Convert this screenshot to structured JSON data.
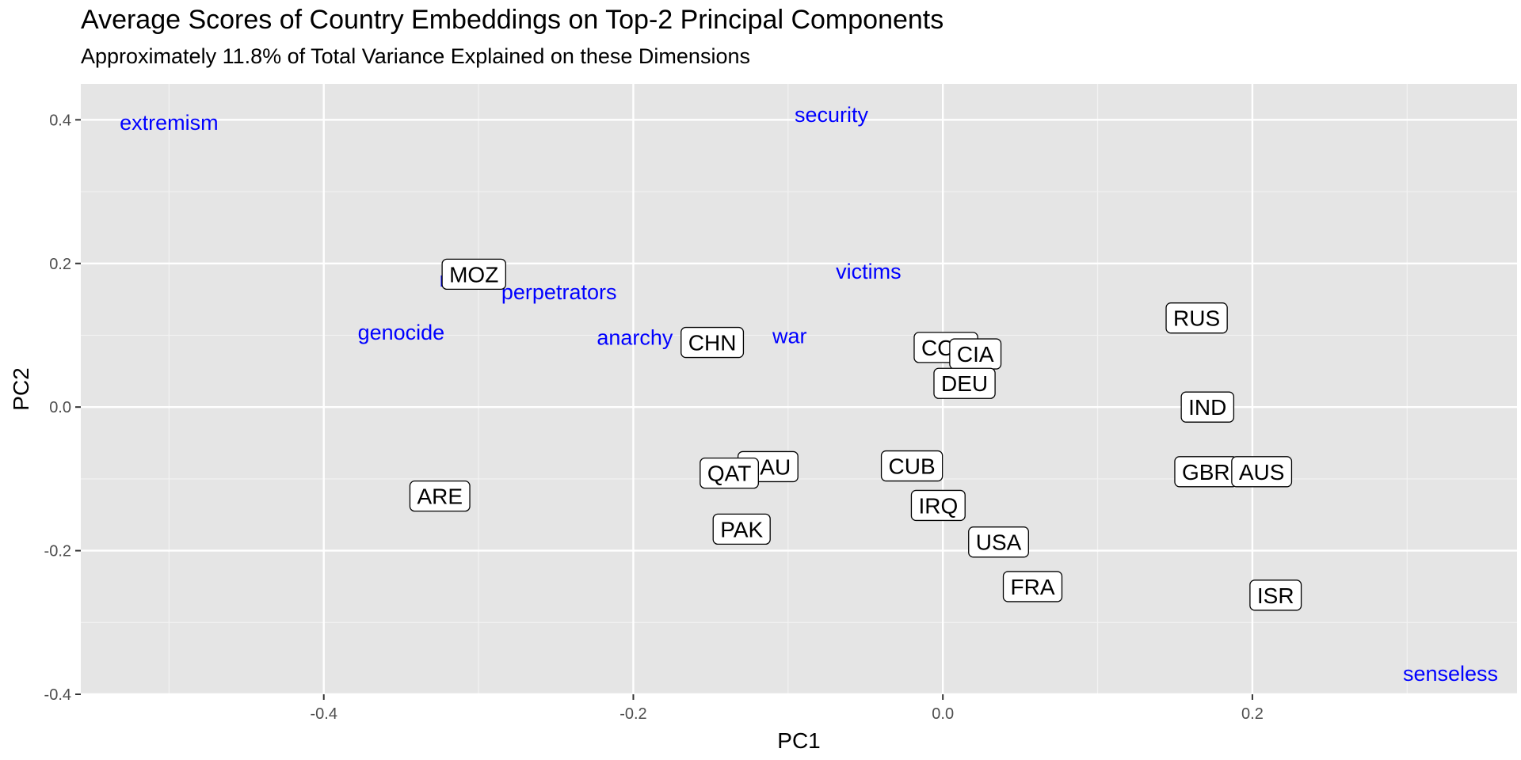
{
  "chart_data": {
    "type": "scatter",
    "title": "Average Scores of Country Embeddings on Top-2 Principal Components",
    "subtitle": "Approximately 11.8% of Total Variance Explained on these Dimensions",
    "xlabel": "PC1",
    "ylabel": "PC2",
    "xlim": [
      -0.557,
      0.371
    ],
    "ylim": [
      -0.4,
      0.45
    ],
    "x_ticks": [
      -0.4,
      -0.2,
      0.0,
      0.2
    ],
    "x_tick_labels": [
      "-0.4",
      "-0.2",
      "0.0",
      "0.2"
    ],
    "y_ticks": [
      -0.4,
      -0.2,
      0.0,
      0.2,
      0.4
    ],
    "y_tick_labels": [
      "-0.4",
      "-0.2",
      "0.0",
      "0.2",
      "0.4"
    ],
    "grid": true,
    "legend": "none",
    "panel_color": "#e5e5e5",
    "word_color": "#0000ff",
    "country_points": [
      {
        "label": "MOZ",
        "x": -0.303,
        "y": 0.185
      },
      {
        "label": "CHN",
        "x": -0.149,
        "y": 0.09
      },
      {
        "label": "RUS",
        "x": 0.164,
        "y": 0.124
      },
      {
        "label": "COD",
        "x": 0.002,
        "y": 0.083
      },
      {
        "label": "CIA",
        "x": 0.021,
        "y": 0.074
      },
      {
        "label": "DEU",
        "x": 0.014,
        "y": 0.033
      },
      {
        "label": "IND",
        "x": 0.171,
        "y": 0.0
      },
      {
        "label": "SAU",
        "x": -0.113,
        "y": -0.083
      },
      {
        "label": "QAT",
        "x": -0.138,
        "y": -0.092
      },
      {
        "label": "CUB",
        "x": -0.02,
        "y": -0.082
      },
      {
        "label": "GBR",
        "x": 0.17,
        "y": -0.09
      },
      {
        "label": "AUS",
        "x": 0.206,
        "y": -0.09
      },
      {
        "label": "ARE",
        "x": -0.325,
        "y": -0.124
      },
      {
        "label": "IRQ",
        "x": -0.003,
        "y": -0.137
      },
      {
        "label": "PAK",
        "x": -0.13,
        "y": -0.17
      },
      {
        "label": "USA",
        "x": 0.036,
        "y": -0.188
      },
      {
        "label": "FRA",
        "x": 0.058,
        "y": -0.25
      },
      {
        "label": "ISR",
        "x": 0.215,
        "y": -0.262
      }
    ],
    "word_points": [
      {
        "label": "extremism",
        "x": -0.5,
        "y": 0.397
      },
      {
        "label": "security",
        "x": -0.072,
        "y": 0.408
      },
      {
        "label": "racism",
        "x": -0.305,
        "y": 0.179
      },
      {
        "label": "victims",
        "x": -0.048,
        "y": 0.19
      },
      {
        "label": "perpetrators",
        "x": -0.248,
        "y": 0.161
      },
      {
        "label": "genocide",
        "x": -0.35,
        "y": 0.105
      },
      {
        "label": "anarchy",
        "x": -0.199,
        "y": 0.098
      },
      {
        "label": "war",
        "x": -0.099,
        "y": 0.1
      },
      {
        "label": "senseless",
        "x": 0.328,
        "y": -0.37
      }
    ]
  }
}
